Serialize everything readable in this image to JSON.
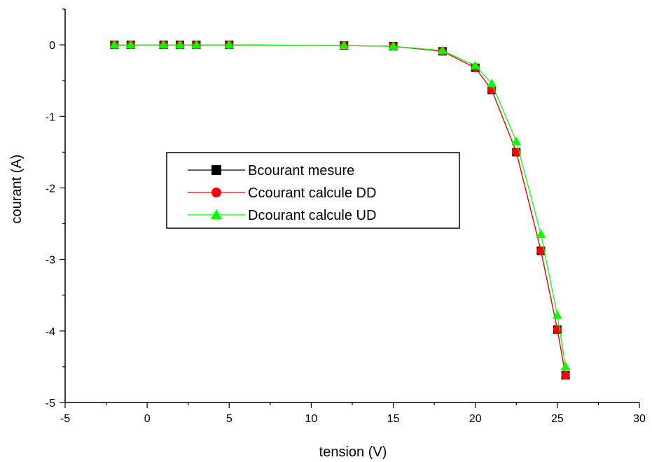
{
  "chart_data": {
    "type": "line",
    "xlabel": "tension (V)",
    "ylabel": "courant (A)",
    "xlim": [
      -5,
      30
    ],
    "ylim": [
      -5,
      0.5
    ],
    "xticks": [
      -5,
      0,
      5,
      10,
      15,
      20,
      25,
      30
    ],
    "yticks": [
      -5,
      -4,
      -3,
      -2,
      -1,
      0
    ],
    "grid": false,
    "legend_position": "center-left",
    "series": [
      {
        "name": "Bcourant mesure",
        "color": "#000000",
        "marker": "square",
        "x": [
          -2,
          -1,
          1,
          2,
          3,
          5,
          12,
          15,
          18,
          20,
          21,
          22.5,
          24,
          25,
          25.5
        ],
        "y": [
          0,
          0,
          0,
          0,
          0,
          0,
          -0.01,
          -0.02,
          -0.09,
          -0.32,
          -0.63,
          -1.5,
          -2.88,
          -3.98,
          -4.62
        ]
      },
      {
        "name": "Ccourant calcule DD",
        "color": "#ff0000",
        "marker": "circle",
        "x": [
          -2,
          -1,
          1,
          2,
          3,
          5,
          12,
          15,
          18,
          20,
          21,
          22.5,
          24,
          25,
          25.5
        ],
        "y": [
          0,
          0,
          0,
          0,
          0,
          0,
          -0.01,
          -0.02,
          -0.09,
          -0.32,
          -0.63,
          -1.5,
          -2.88,
          -3.98,
          -4.62
        ]
      },
      {
        "name": "Dcourant calcule UD",
        "color": "#00ff00",
        "marker": "triangle",
        "x": [
          -2,
          -1,
          1,
          2,
          3,
          5,
          12,
          15,
          18,
          20,
          21,
          22.5,
          24,
          25,
          25.5
        ],
        "y": [
          0,
          0,
          0,
          0,
          0,
          0,
          -0.01,
          -0.02,
          -0.08,
          -0.29,
          -0.54,
          -1.35,
          -2.65,
          -3.78,
          -4.5
        ]
      }
    ]
  }
}
